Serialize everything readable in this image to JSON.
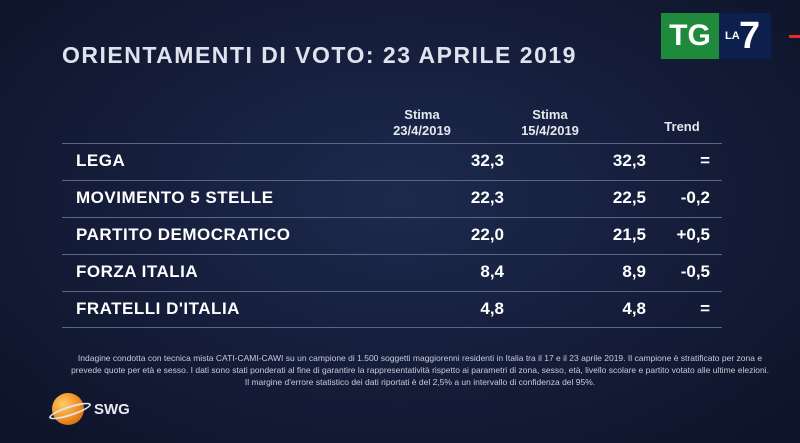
{
  "title": "ORIENTAMENTI DI VOTO: 23 APRILE 2019",
  "broadcaster": {
    "tg": "TG",
    "la": "LA",
    "seven": "7"
  },
  "columns": [
    {
      "label": "Stima",
      "sub": "23/4/2019"
    },
    {
      "label": "Stima",
      "sub": "15/4/2019"
    },
    {
      "label": "Trend",
      "sub": ""
    }
  ],
  "rows": [
    {
      "party": "LEGA",
      "v1": "32,3",
      "v2": "32,3",
      "trend": "="
    },
    {
      "party": "MOVIMENTO 5 STELLE",
      "v1": "22,3",
      "v2": "22,5",
      "trend": "-0,2"
    },
    {
      "party": "PARTITO DEMOCRATICO",
      "v1": "22,0",
      "v2": "21,5",
      "trend": "+0,5"
    },
    {
      "party": "FORZA ITALIA",
      "v1": "8,4",
      "v2": "8,9",
      "trend": "-0,5"
    },
    {
      "party": "FRATELLI D'ITALIA",
      "v1": "4,8",
      "v2": "4,8",
      "trend": "="
    }
  ],
  "note": "Indagine condotta con tecnica mista CATI-CAMI-CAWI su un campione di 1.500 soggetti maggiorenni residenti in Italia tra il 17 e il 23 aprile 2019. Il campione è stratificato per zona e prevede quote per età e sesso. I dati sono stati ponderati al fine di garantire la rappresentatività rispetto ai parametri di zona, sesso, età, livello scolare e partito votato alle ultime elezioni. Il margine d'errore statistico dei dati riportati è del 2,5% a un intervallo di confidenza del 95%.",
  "pollster": "SWG"
}
